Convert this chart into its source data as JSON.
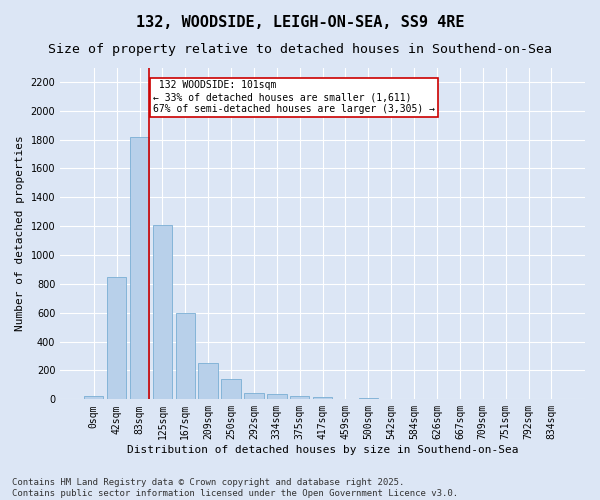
{
  "title1": "132, WOODSIDE, LEIGH-ON-SEA, SS9 4RE",
  "title2": "Size of property relative to detached houses in Southend-on-Sea",
  "xlabel": "Distribution of detached houses by size in Southend-on-Sea",
  "ylabel": "Number of detached properties",
  "bar_color": "#b8d0ea",
  "bar_edge_color": "#7aaed4",
  "background_color": "#dce6f5",
  "fig_background": "#dce6f5",
  "grid_color": "#ffffff",
  "categories": [
    "0sqm",
    "42sqm",
    "83sqm",
    "125sqm",
    "167sqm",
    "209sqm",
    "250sqm",
    "292sqm",
    "334sqm",
    "375sqm",
    "417sqm",
    "459sqm",
    "500sqm",
    "542sqm",
    "584sqm",
    "626sqm",
    "667sqm",
    "709sqm",
    "751sqm",
    "792sqm",
    "834sqm"
  ],
  "values": [
    20,
    845,
    1820,
    1210,
    600,
    255,
    140,
    42,
    35,
    25,
    15,
    0,
    10,
    0,
    0,
    0,
    0,
    0,
    0,
    0,
    0
  ],
  "ylim": [
    0,
    2300
  ],
  "yticks": [
    0,
    200,
    400,
    600,
    800,
    1000,
    1200,
    1400,
    1600,
    1800,
    2000,
    2200
  ],
  "marker_label": "132 WOODSIDE: 101sqm",
  "pct_smaller": "33%",
  "n_smaller": "1,611",
  "pct_larger": "67%",
  "n_larger": "3,305",
  "annotation_box_color": "#cc0000",
  "marker_line_color": "#cc0000",
  "footer1": "Contains HM Land Registry data © Crown copyright and database right 2025.",
  "footer2": "Contains public sector information licensed under the Open Government Licence v3.0.",
  "title1_fontsize": 11,
  "title2_fontsize": 9.5,
  "tick_fontsize": 7,
  "label_fontsize": 8,
  "footer_fontsize": 6.5,
  "annot_fontsize": 7
}
